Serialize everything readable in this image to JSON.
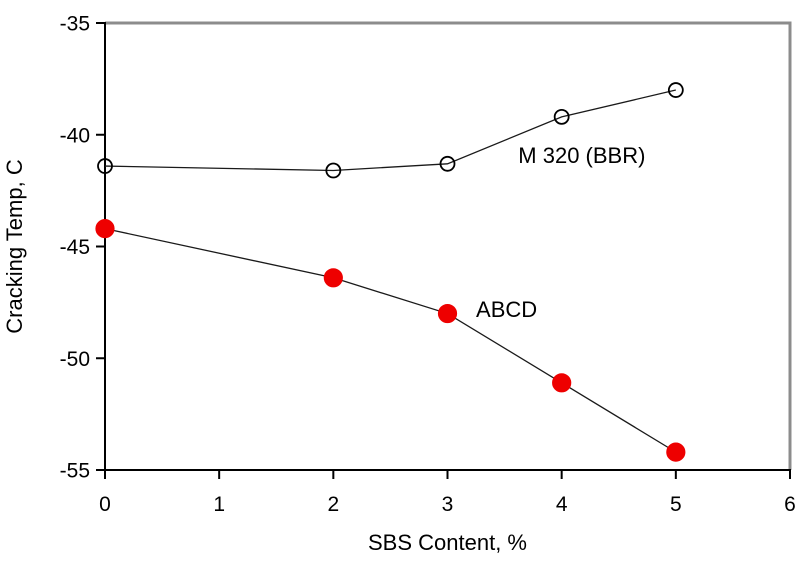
{
  "page": {
    "background": "#ffffff"
  },
  "chart_data": {
    "type": "line",
    "title": "",
    "xlabel": "SBS Content, %",
    "ylabel": "Cracking Temp, C",
    "xlim": [
      0,
      6
    ],
    "ylim": [
      -55,
      -35
    ],
    "xticks": [
      0,
      1,
      2,
      3,
      4,
      5,
      6
    ],
    "yticks": [
      -35,
      -40,
      -45,
      -50,
      -55
    ],
    "grid": false,
    "legend_position": "inline-annotations",
    "axis_color": "#000000",
    "frame_border_color": "#8c8c8c",
    "series": [
      {
        "name": "M 320 (BBR)",
        "x": [
          0,
          2,
          3,
          4,
          5
        ],
        "values": [
          -41.4,
          -41.6,
          -41.3,
          -39.2,
          -38.0
        ],
        "marker": "open-circle",
        "marker_fill": "none",
        "marker_stroke": "#000000",
        "line_color": "#1a1a1a"
      },
      {
        "name": "ABCD",
        "x": [
          0,
          2,
          3,
          4,
          5
        ],
        "values": [
          -44.2,
          -46.4,
          -48.0,
          -51.1,
          -54.2
        ],
        "marker": "filled-circle",
        "marker_fill": "#ee0000",
        "marker_stroke": "#ee0000",
        "line_color": "#1a1a1a"
      }
    ],
    "annotations": [
      {
        "text": "M 320 (BBR)",
        "x": 3.62,
        "y": -40.9,
        "anchor": "start"
      },
      {
        "text": "ABCD",
        "x": 3.25,
        "y": -47.8,
        "anchor": "start"
      }
    ]
  }
}
